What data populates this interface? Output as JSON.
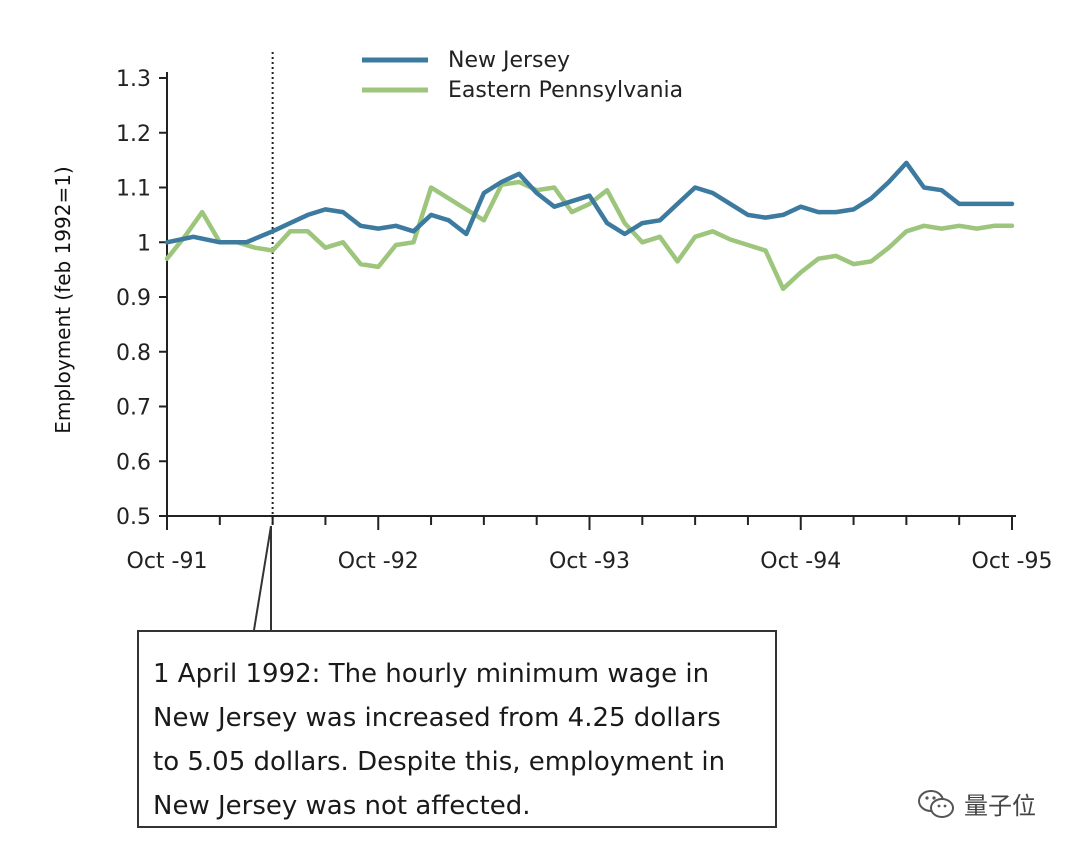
{
  "chart_data": {
    "type": "line",
    "title": "",
    "xlabel": "",
    "ylabel": "Employment (feb 1992=1)",
    "ylim": [
      0.5,
      1.3
    ],
    "yticks": [
      "0.5",
      "0.6",
      "0.7",
      "0.8",
      "0.9",
      "1",
      "1.1",
      "1.2",
      "1.3"
    ],
    "xtick_labels": [
      "Oct -91",
      "Oct -92",
      "Oct -93",
      "Oct -94",
      "Oct -95"
    ],
    "x_unit": "months since Oct 1991",
    "xlim": [
      0,
      48
    ],
    "event_marker": {
      "x": 6,
      "style": "dotted"
    },
    "legend_position": "top-center",
    "series": [
      {
        "name": "New Jersey",
        "color": "#3d7aa0",
        "x": [
          0,
          1.5,
          3,
          4.5,
          6,
          7,
          8,
          9,
          10,
          11,
          12,
          13,
          14,
          15,
          16,
          17,
          18,
          19,
          20,
          21,
          22,
          23,
          24,
          25,
          26,
          27,
          28,
          29,
          30,
          31,
          32,
          33,
          34,
          35,
          36,
          37,
          38,
          39,
          40,
          41,
          42,
          43,
          44,
          45,
          46,
          47,
          48
        ],
        "values": [
          1.0,
          1.01,
          1.0,
          1.0,
          1.02,
          1.035,
          1.05,
          1.06,
          1.055,
          1.03,
          1.025,
          1.03,
          1.02,
          1.05,
          1.04,
          1.015,
          1.09,
          1.11,
          1.125,
          1.09,
          1.065,
          1.075,
          1.085,
          1.035,
          1.015,
          1.035,
          1.04,
          1.07,
          1.1,
          1.09,
          1.07,
          1.05,
          1.045,
          1.05,
          1.065,
          1.055,
          1.055,
          1.06,
          1.08,
          1.11,
          1.145,
          1.1,
          1.095,
          1.07,
          1.07,
          1.07,
          1.07
        ]
      },
      {
        "name": "Eastern Pennsylvania",
        "color": "#9dc57c",
        "x": [
          0,
          1,
          2,
          3,
          4,
          5,
          6,
          7,
          8,
          9,
          10,
          11,
          12,
          13,
          14,
          15,
          16,
          17,
          18,
          19,
          20,
          21,
          22,
          23,
          24,
          25,
          26,
          27,
          28,
          29,
          30,
          31,
          32,
          33,
          34,
          35,
          36,
          37,
          38,
          39,
          40,
          41,
          42,
          43,
          44,
          45,
          46,
          47,
          48
        ],
        "values": [
          0.97,
          1.01,
          1.055,
          1.0,
          1.0,
          0.99,
          0.985,
          1.02,
          1.02,
          0.99,
          1.0,
          0.96,
          0.955,
          0.995,
          1.0,
          1.1,
          1.08,
          1.06,
          1.04,
          1.105,
          1.11,
          1.095,
          1.1,
          1.055,
          1.07,
          1.095,
          1.035,
          1.0,
          1.01,
          0.965,
          1.01,
          1.02,
          1.005,
          0.995,
          0.985,
          0.915,
          0.945,
          0.97,
          0.975,
          0.96,
          0.965,
          0.99,
          1.02,
          1.03,
          1.025,
          1.03,
          1.025,
          1.03,
          1.03
        ]
      }
    ]
  },
  "annotation": {
    "lines": [
      "1 April 1992: The hourly minimum wage in",
      "New Jersey was increased from 4.25 dollars",
      "to 5.05 dollars. Despite this, employment in",
      "New Jersey was not affected."
    ]
  },
  "watermark": {
    "text": "量子位",
    "icon": "wechat-icon"
  }
}
